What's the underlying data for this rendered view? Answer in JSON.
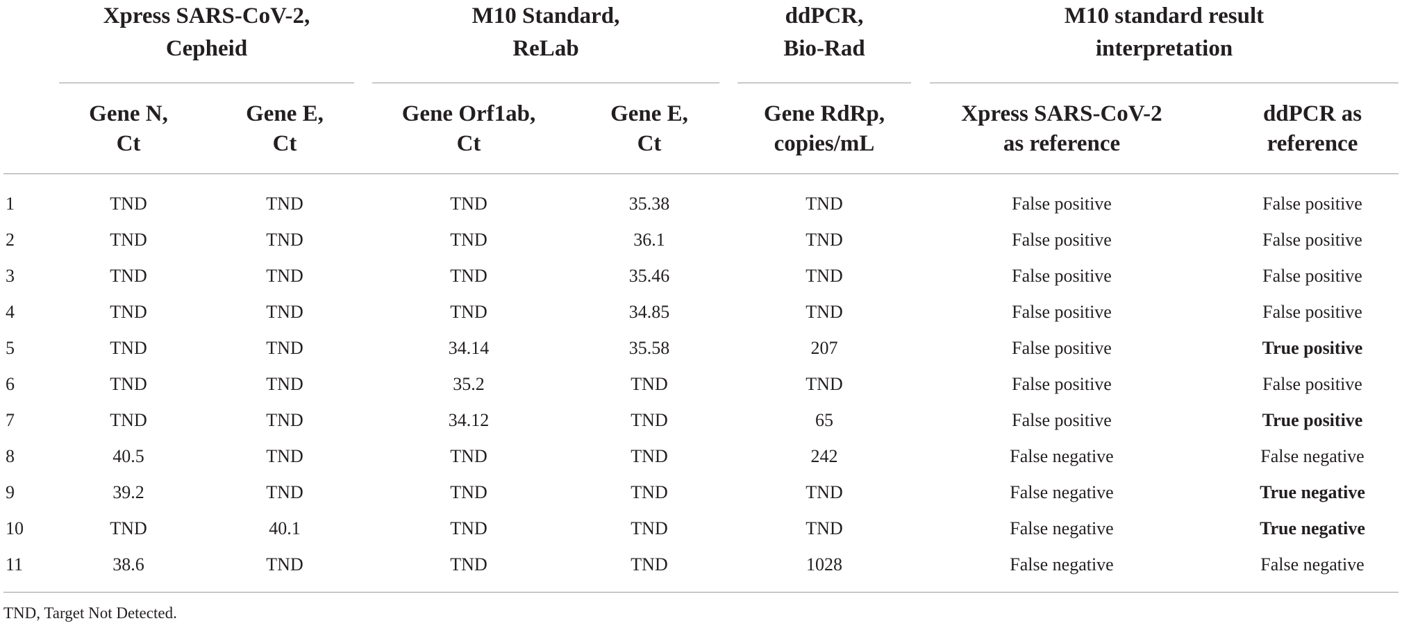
{
  "table": {
    "group_headers": [
      {
        "label": "Xpress SARS-CoV-2,\nCepheid"
      },
      {
        "label": "M10 Standard,\nReLab"
      },
      {
        "label": "ddPCR,\nBio-Rad"
      },
      {
        "label": "M10 standard result\ninterpretation"
      }
    ],
    "column_headers": [
      "Gene N,\nCt",
      "Gene E,\nCt",
      "Gene Orf1ab,\nCt",
      "Gene E,\nCt",
      "Gene RdRp,\ncopies/mL",
      "Xpress SARS-CoV-2\nas reference",
      "ddPCR as\nreference"
    ],
    "rows": [
      {
        "id": "1",
        "cells": [
          "TND",
          "TND",
          "TND",
          "35.38",
          "TND",
          "False positive",
          "False positive"
        ],
        "bold_last": false
      },
      {
        "id": "2",
        "cells": [
          "TND",
          "TND",
          "TND",
          "36.1",
          "TND",
          "False positive",
          "False positive"
        ],
        "bold_last": false
      },
      {
        "id": "3",
        "cells": [
          "TND",
          "TND",
          "TND",
          "35.46",
          "TND",
          "False positive",
          "False positive"
        ],
        "bold_last": false
      },
      {
        "id": "4",
        "cells": [
          "TND",
          "TND",
          "TND",
          "34.85",
          "TND",
          "False positive",
          "False positive"
        ],
        "bold_last": false
      },
      {
        "id": "5",
        "cells": [
          "TND",
          "TND",
          "34.14",
          "35.58",
          "207",
          "False positive",
          "True positive"
        ],
        "bold_last": true
      },
      {
        "id": "6",
        "cells": [
          "TND",
          "TND",
          "35.2",
          "TND",
          "TND",
          "False positive",
          "False positive"
        ],
        "bold_last": false
      },
      {
        "id": "7",
        "cells": [
          "TND",
          "TND",
          "34.12",
          "TND",
          "65",
          "False positive",
          "True positive"
        ],
        "bold_last": true
      },
      {
        "id": "8",
        "cells": [
          "40.5",
          "TND",
          "TND",
          "TND",
          "242",
          "False negative",
          "False negative"
        ],
        "bold_last": false
      },
      {
        "id": "9",
        "cells": [
          "39.2",
          "TND",
          "TND",
          "TND",
          "TND",
          "False negative",
          "True negative"
        ],
        "bold_last": true
      },
      {
        "id": "10",
        "cells": [
          "TND",
          "40.1",
          "TND",
          "TND",
          "TND",
          "False negative",
          "True negative"
        ],
        "bold_last": true
      },
      {
        "id": "11",
        "cells": [
          "38.6",
          "TND",
          "TND",
          "TND",
          "1028",
          "False negative",
          "False negative"
        ],
        "bold_last": false
      }
    ]
  },
  "footnote": "TND, Target Not Detected."
}
